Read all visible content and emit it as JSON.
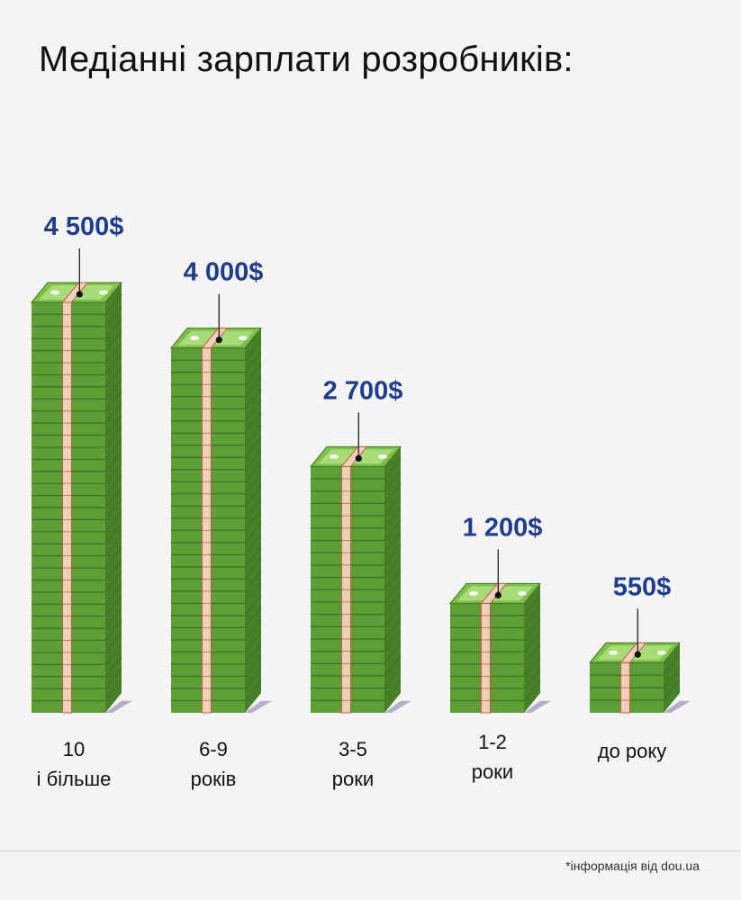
{
  "page": {
    "title": "Медіанні зарплати розробників:",
    "source_note": "*інформація від dou.ua"
  },
  "colors": {
    "background": "#f4f4f4",
    "title_text": "#111111",
    "value_label": "#1f3d8f",
    "bill_front": "#5f9e36",
    "bill_line": "#3e7320",
    "bill_side": "#468027",
    "bill_top": "#7fc04c",
    "bill_top_inner": "#a8dc78",
    "band": "#f0d0bc",
    "band_edge": "#c0603c",
    "shadow": "#b7aec9"
  },
  "chart_data": {
    "type": "bar",
    "title": "Медіанні зарплати розробників:",
    "categories": [
      [
        "10",
        "і більше"
      ],
      [
        "6-9",
        "років"
      ],
      [
        "3-5",
        "роки"
      ],
      [
        "1-2",
        "роки"
      ],
      [
        "до року"
      ]
    ],
    "values": [
      4500,
      4000,
      2700,
      1200,
      550
    ],
    "value_labels": [
      "4 500$",
      "4 000$",
      "2 700$",
      "1 200$",
      "550$"
    ],
    "unit": "$",
    "xlabel": "",
    "ylabel": "",
    "grid": false,
    "legend": "none"
  }
}
